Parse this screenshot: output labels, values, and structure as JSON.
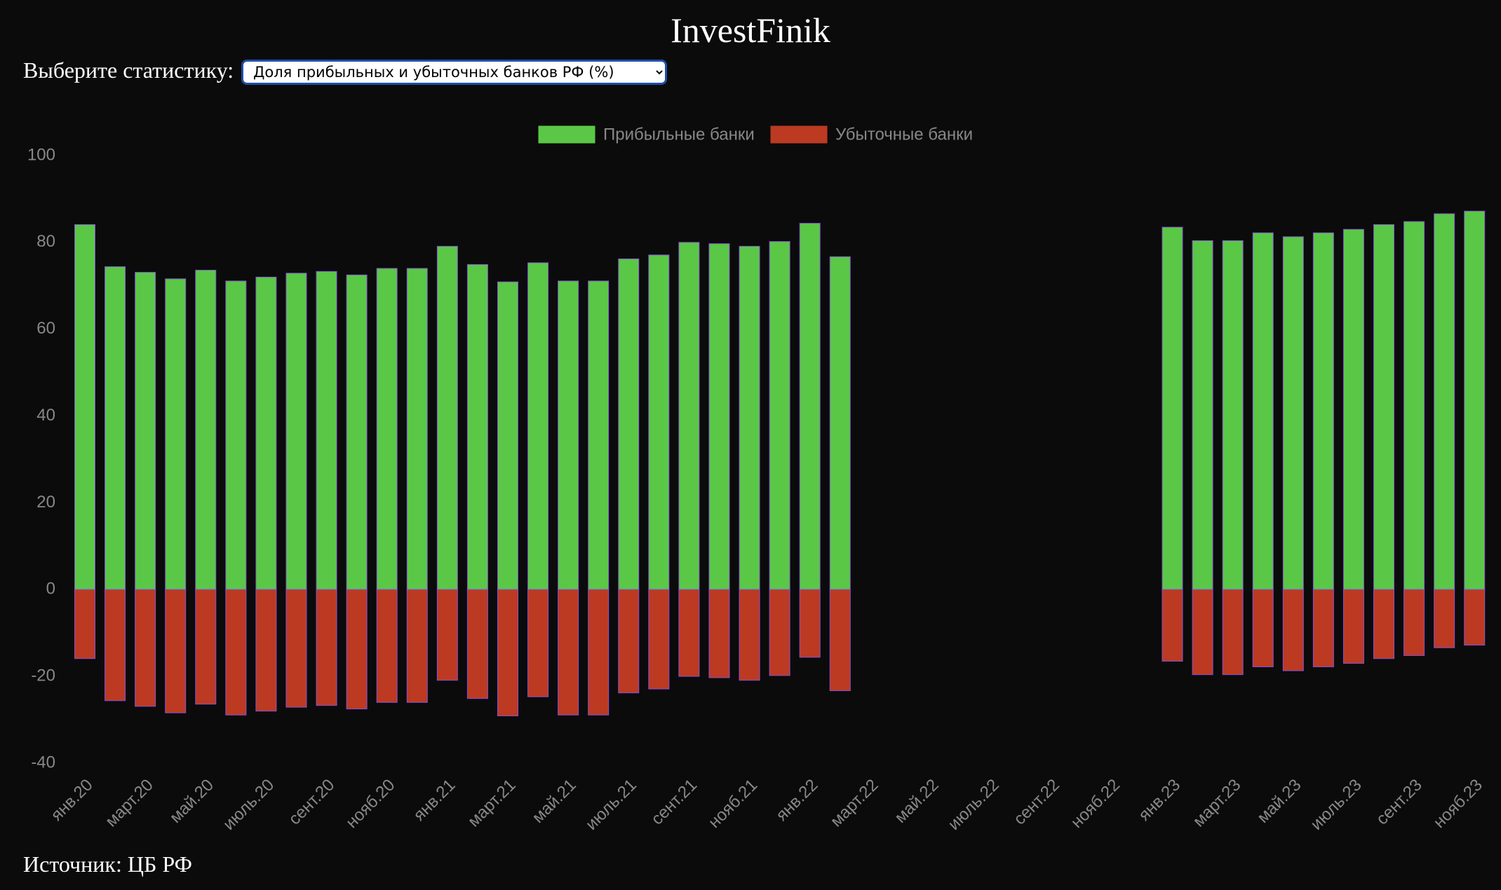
{
  "header": {
    "title": "InvestFinik",
    "selector_label": "Выберите статистику:",
    "selector_value": "Доля прибыльных и убыточных банков РФ (%)"
  },
  "chart_data": {
    "type": "bar",
    "stacked": true,
    "categories": [
      "янв.20",
      null,
      "март.20",
      null,
      "май.20",
      null,
      "июль.20",
      null,
      "сент.20",
      null,
      "нояб.20",
      null,
      "янв.21",
      null,
      "март.21",
      null,
      "май.21",
      null,
      "июль.21",
      null,
      "сент.21",
      null,
      "нояб.21",
      null,
      "янв.22",
      null,
      "март.22",
      null,
      "май.22",
      null,
      "июль.22",
      null,
      "сент.22",
      null,
      "нояб.22",
      null,
      "янв.23",
      null,
      "март.23",
      null,
      "май.23",
      null,
      "июль.23",
      null,
      "сент.23",
      null,
      "нояб.23"
    ],
    "series": [
      {
        "name": "Прибыльные банки",
        "color": "#5ac846",
        "values": [
          84.1,
          74.4,
          73.1,
          71.6,
          73.6,
          71.1,
          72.0,
          72.9,
          73.3,
          72.5,
          74.0,
          74.0,
          79.1,
          74.9,
          70.9,
          75.3,
          71.1,
          71.1,
          76.2,
          77.1,
          80.0,
          79.7,
          79.1,
          80.2,
          84.4,
          76.7,
          null,
          null,
          null,
          null,
          null,
          null,
          null,
          null,
          null,
          null,
          83.5,
          80.4,
          80.4,
          82.2,
          81.3,
          82.2,
          83.0,
          84.1,
          84.8,
          86.6,
          87.2
        ]
      },
      {
        "name": "Убыточные банки",
        "color": "#bc3a22",
        "values": [
          -15.9,
          -25.6,
          -26.9,
          -28.4,
          -26.4,
          -28.9,
          -28.0,
          -27.1,
          -26.7,
          -27.5,
          -26.0,
          -26.0,
          -20.9,
          -25.1,
          -29.1,
          -24.7,
          -28.9,
          -28.9,
          -23.8,
          -22.9,
          -20.0,
          -20.3,
          -20.9,
          -19.8,
          -15.6,
          -23.3,
          null,
          null,
          null,
          null,
          null,
          null,
          null,
          null,
          null,
          null,
          -16.5,
          -19.6,
          -19.6,
          -17.8,
          -18.7,
          -17.8,
          -17.0,
          -15.9,
          -15.2,
          -13.4,
          -12.8
        ]
      }
    ],
    "ylim": [
      -40,
      100
    ],
    "yticks": [
      -40,
      -20,
      0,
      20,
      40,
      60,
      80,
      100
    ],
    "grid": false,
    "legend": "top"
  },
  "footer": {
    "source": "Источник: ЦБ РФ"
  }
}
